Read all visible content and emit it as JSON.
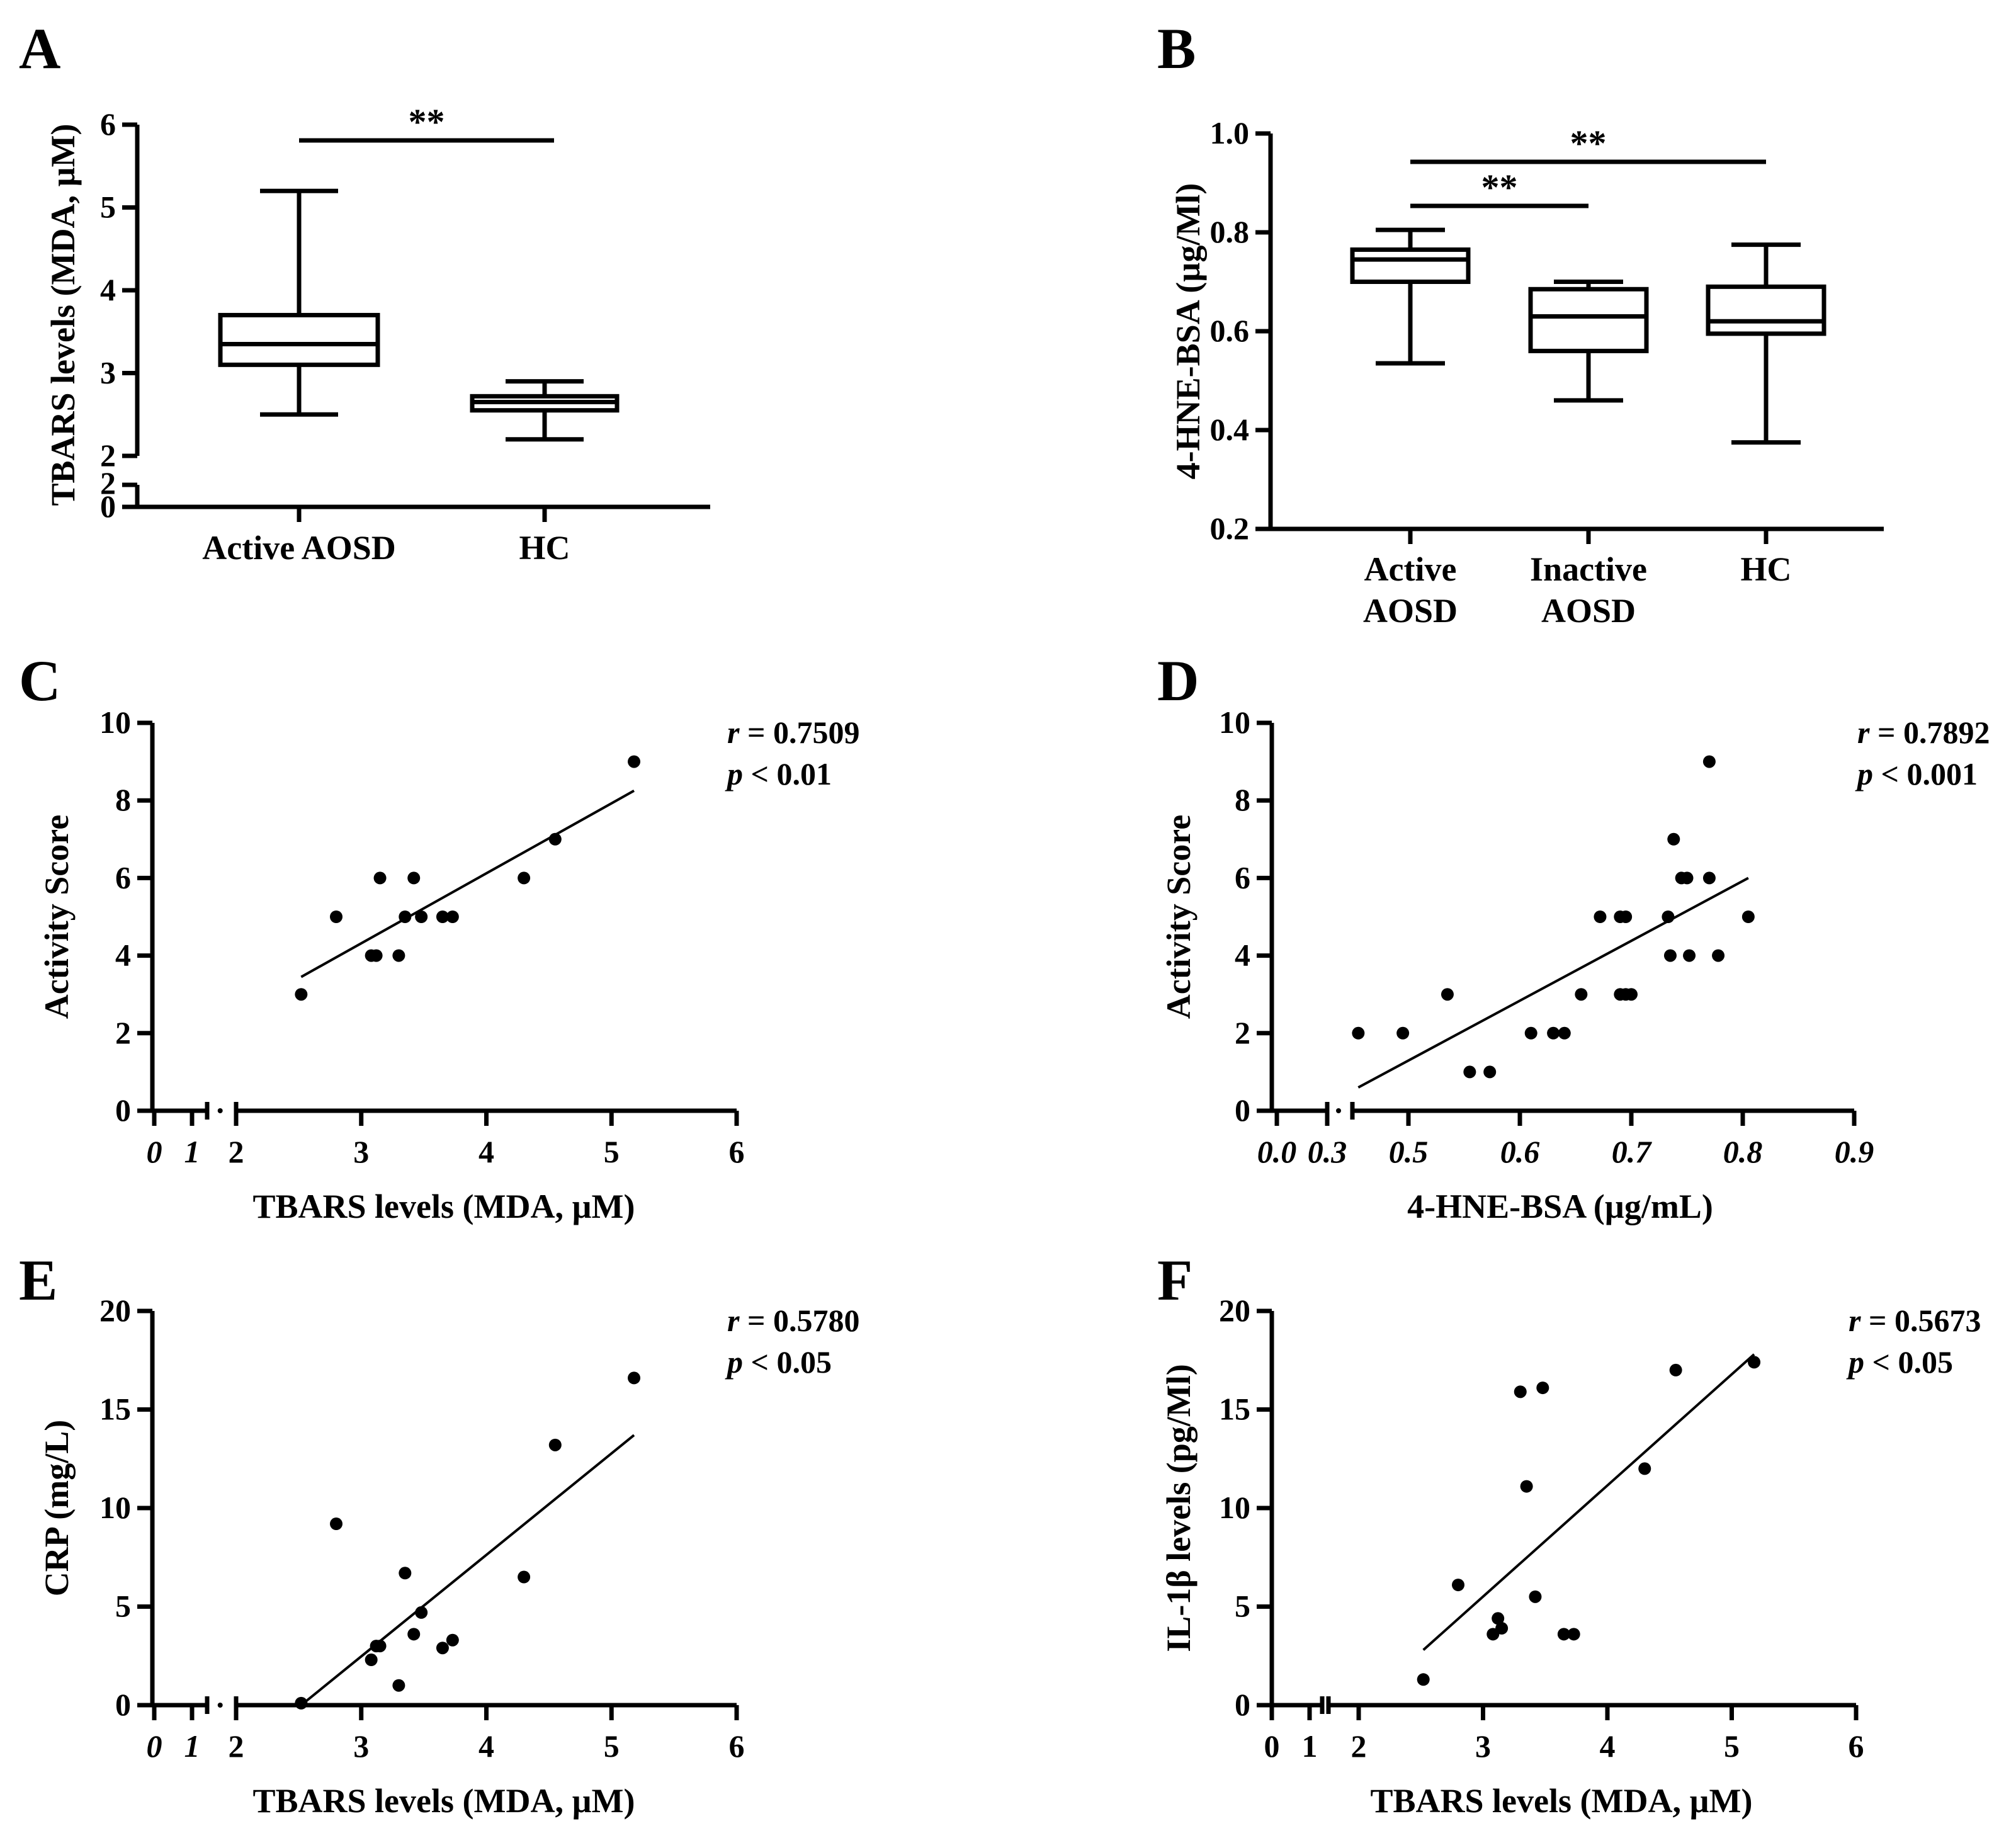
{
  "chart_data": [
    {
      "panel": "A",
      "type": "box",
      "ylabel": "TBARS levels (MDA, µM)",
      "ylim": [
        0,
        6
      ],
      "axis_break": [
        2,
        2
      ],
      "yticks_upper": [
        "2",
        "3",
        "4",
        "5",
        "6"
      ],
      "yticks_lower": [
        "0",
        "2"
      ],
      "categories": [
        "Active AOSD",
        "HC"
      ],
      "boxes": [
        {
          "min": 2.5,
          "q1": 3.1,
          "median": 3.35,
          "q3": 3.7,
          "max": 5.2
        },
        {
          "min": 2.2,
          "q1": 2.55,
          "median": 2.65,
          "q3": 2.72,
          "max": 2.9
        }
      ],
      "significance": [
        {
          "from": 0,
          "to": 1,
          "label": "**"
        }
      ]
    },
    {
      "panel": "B",
      "type": "box",
      "ylabel": "4-HNE-BSA (µg/Ml)",
      "ylim": [
        0.2,
        1.0
      ],
      "yticks": [
        "0.2",
        "0.4",
        "0.6",
        "0.8",
        "1.0"
      ],
      "categories": [
        [
          "Active",
          "AOSD"
        ],
        [
          "Inactive",
          "AOSD"
        ],
        [
          "HC"
        ]
      ],
      "boxes": [
        {
          "min": 0.535,
          "q1": 0.7,
          "median": 0.745,
          "q3": 0.765,
          "max": 0.805
        },
        {
          "min": 0.46,
          "q1": 0.56,
          "median": 0.63,
          "q3": 0.685,
          "max": 0.7
        },
        {
          "min": 0.375,
          "q1": 0.595,
          "median": 0.62,
          "q3": 0.69,
          "max": 0.775
        }
      ],
      "significance": [
        {
          "from": 0,
          "to": 1,
          "label": "**"
        },
        {
          "from": 0,
          "to": 2,
          "label": "**"
        }
      ]
    },
    {
      "panel": "C",
      "type": "scatter",
      "xlabel": "TBARS levels (MDA, µM)",
      "ylabel": "Activity Score",
      "xlim": [
        2,
        6
      ],
      "ylim": [
        0,
        10
      ],
      "xticks_left": [
        "0",
        "1"
      ],
      "xticks": [
        "2",
        "3",
        "4",
        "5",
        "6"
      ],
      "yticks": [
        "0",
        "2",
        "4",
        "6",
        "8",
        "10"
      ],
      "x": [
        2.52,
        2.8,
        3.08,
        3.12,
        3.15,
        3.3,
        3.35,
        3.42,
        3.48,
        3.65,
        3.73,
        4.3,
        4.55,
        5.18
      ],
      "y": [
        3,
        5,
        4,
        4,
        6,
        4,
        5,
        6,
        5,
        5,
        5,
        6,
        7,
        9
      ],
      "fit": {
        "x": [
          2.52,
          5.18
        ],
        "y": [
          3.45,
          8.25
        ]
      },
      "r_text": "r = 0.7509",
      "p_text": "p < 0.01"
    },
    {
      "panel": "D",
      "type": "scatter",
      "xlabel": "4-HNE-BSA (µg/mL)",
      "ylabel": "Activity Score",
      "xlim": [
        0.4,
        0.9
      ],
      "ylim": [
        0,
        10
      ],
      "xticks_left": [
        "0.0",
        "0.3"
      ],
      "xticks": [
        "0.5",
        "0.6",
        "0.7",
        "0.8",
        "0.9"
      ],
      "xtick_values": [
        0.5,
        0.6,
        0.7,
        0.8,
        0.9
      ],
      "yticks": [
        "0",
        "2",
        "4",
        "6",
        "8",
        "10"
      ],
      "x": [
        0.455,
        0.495,
        0.535,
        0.555,
        0.573,
        0.61,
        0.63,
        0.64,
        0.655,
        0.672,
        0.69,
        0.695,
        0.69,
        0.695,
        0.7,
        0.733,
        0.735,
        0.738,
        0.745,
        0.75,
        0.752,
        0.77,
        0.77,
        0.778,
        0.805
      ],
      "y": [
        2,
        2,
        3,
        1,
        1,
        2,
        2,
        2,
        3,
        5,
        5,
        5,
        3,
        3,
        3,
        5,
        4,
        7,
        6,
        6,
        4,
        6,
        9,
        4,
        5
      ],
      "fit": {
        "x": [
          0.455,
          0.805
        ],
        "y": [
          0.6,
          6.0
        ]
      },
      "r_text": "r = 0.7892",
      "p_text": "p < 0.001"
    },
    {
      "panel": "E",
      "type": "scatter",
      "xlabel": "TBARS levels (MDA, µM)",
      "ylabel": "CRP (mg/L)",
      "xlim": [
        2,
        6
      ],
      "ylim": [
        0,
        20
      ],
      "xticks_left": [
        "0",
        "1"
      ],
      "xticks": [
        "2",
        "3",
        "4",
        "5",
        "6"
      ],
      "yticks": [
        "0",
        "5",
        "10",
        "15",
        "20"
      ],
      "x": [
        2.52,
        2.8,
        3.08,
        3.12,
        3.15,
        3.3,
        3.35,
        3.42,
        3.48,
        3.65,
        3.73,
        4.3,
        4.55,
        5.18
      ],
      "y": [
        0.1,
        9.2,
        2.3,
        3.0,
        3.0,
        1.0,
        6.7,
        3.6,
        4.7,
        2.9,
        3.3,
        6.5,
        13.2,
        16.6
      ],
      "fit": {
        "x": [
          2.52,
          5.18
        ],
        "y": [
          0.0,
          13.7
        ]
      },
      "r_text": "r = 0.5780",
      "p_text": "p < 0.05"
    },
    {
      "panel": "F",
      "type": "scatter",
      "xlabel": "TBARS levels (MDA, µM)",
      "ylabel": "IL-1β levels (pg/Ml)",
      "xlim": [
        2,
        6
      ],
      "ylim": [
        0,
        20
      ],
      "xticks_left": [
        "0",
        "1"
      ],
      "xticks": [
        "2",
        "3",
        "4",
        "5",
        "6"
      ],
      "yticks": [
        "0",
        "5",
        "10",
        "15",
        "20"
      ],
      "x": [
        2.52,
        2.8,
        3.08,
        3.12,
        3.15,
        3.3,
        3.35,
        3.42,
        3.48,
        3.65,
        3.73,
        4.3,
        4.55,
        5.18
      ],
      "y": [
        1.3,
        6.1,
        3.6,
        4.4,
        3.9,
        15.9,
        11.1,
        5.5,
        16.1,
        3.6,
        3.6,
        12.0,
        17.0,
        17.4
      ],
      "fit": {
        "x": [
          2.52,
          5.18
        ],
        "y": [
          2.8,
          17.8
        ]
      },
      "r_text": "r = 0.5673",
      "p_text": "p < 0.05"
    }
  ]
}
